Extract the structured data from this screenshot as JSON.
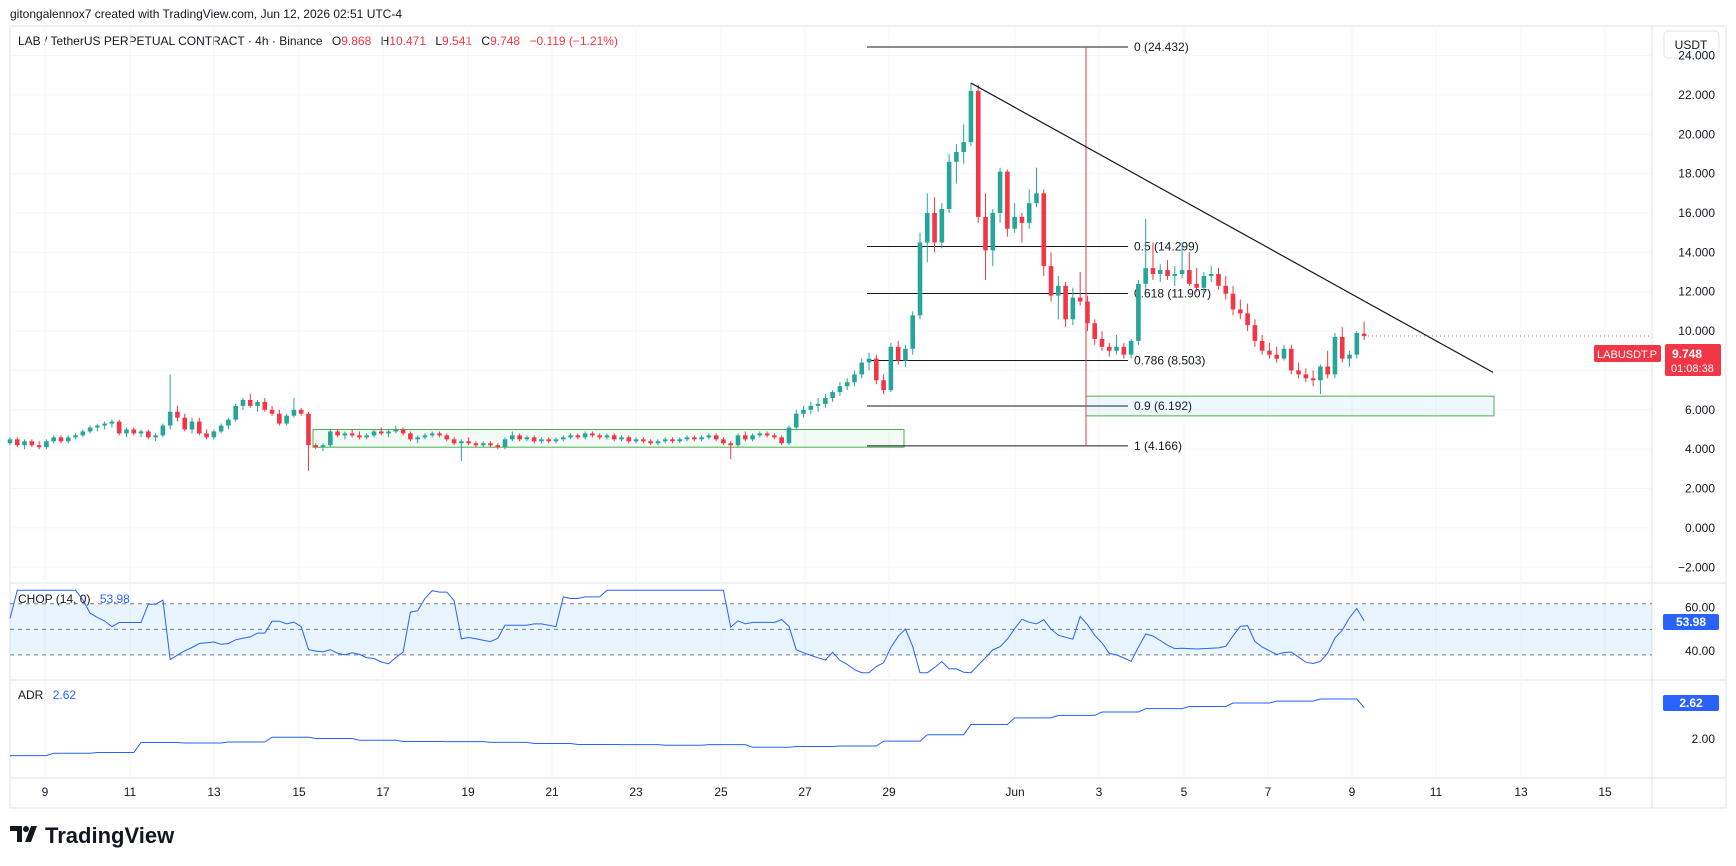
{
  "header": {
    "credit": "gitongalennox7 created with TradingView.com, Jun 12, 2026 02:51 UTC-4"
  },
  "legend": {
    "symbol": "LAB / TetherUS PERPETUAL CONTRACT · 4h · Binance",
    "o_label": "O",
    "o_value": "9.868",
    "h_label": "H",
    "h_value": "10.471",
    "l_label": "L",
    "l_value": "9.541",
    "c_label": "C",
    "c_value": "9.748",
    "change": "−0.119 (−1.21%)"
  },
  "currency_button": "USDT",
  "price_axis": {
    "ticks": [
      "24.000",
      "22.000",
      "20.000",
      "18.000",
      "16.000",
      "14.000",
      "12.000",
      "10.000",
      "8.000",
      "6.000",
      "4.000",
      "2.000",
      "0.000",
      "−2.000"
    ]
  },
  "price_tag": {
    "symbol": "LABUSDT.P",
    "price": "9.748",
    "countdown": "01:08:38"
  },
  "fibonacci": {
    "levels": [
      {
        "label": "0 (24.432)",
        "value": 24.432
      },
      {
        "label": "0.5 (14.299)",
        "value": 14.299
      },
      {
        "label": "0.618 (11.907)",
        "value": 11.907
      },
      {
        "label": "0.786 (8.503)",
        "value": 8.503
      },
      {
        "label": "0.9 (6.192)",
        "value": 6.192
      },
      {
        "label": "1 (4.166)",
        "value": 4.166
      }
    ]
  },
  "chop": {
    "label": "CHOP (14, 0)",
    "value": "53.98",
    "ticks": [
      "60.00",
      "40.00"
    ]
  },
  "adr": {
    "label": "ADR",
    "value": "2.62",
    "ticks": [
      "2.00"
    ]
  },
  "time_axis": {
    "labels": [
      "9",
      "11",
      "13",
      "15",
      "17",
      "19",
      "21",
      "23",
      "25",
      "27",
      "29",
      "Jun",
      "3",
      "5",
      "7",
      "9",
      "11",
      "13",
      "15"
    ]
  },
  "footer": {
    "brand": "TradingView"
  },
  "colors": {
    "up": "#26a69a",
    "down": "#f23645",
    "indicator": "#2962ff",
    "text": "#131722"
  },
  "chart_data": {
    "type": "candlestick",
    "interval": "4h",
    "y_range": [
      -2.8,
      25.5
    ],
    "x_labels": [
      "9",
      "11",
      "13",
      "15",
      "17",
      "19",
      "21",
      "23",
      "25",
      "27",
      "29",
      "Jun",
      "3",
      "5",
      "7",
      "9",
      "11",
      "13",
      "15"
    ],
    "ohlc": [
      [
        4.3,
        4.6,
        4.2,
        4.5
      ],
      [
        4.5,
        4.6,
        4.1,
        4.2
      ],
      [
        4.2,
        4.5,
        4.0,
        4.4
      ],
      [
        4.4,
        4.5,
        4.1,
        4.2
      ],
      [
        4.2,
        4.4,
        4.0,
        4.1
      ],
      [
        4.1,
        4.5,
        4.0,
        4.4
      ],
      [
        4.4,
        4.7,
        4.3,
        4.6
      ],
      [
        4.6,
        4.7,
        4.3,
        4.4
      ],
      [
        4.4,
        4.7,
        4.3,
        4.6
      ],
      [
        4.6,
        4.8,
        4.5,
        4.7
      ],
      [
        4.7,
        5.0,
        4.6,
        4.9
      ],
      [
        4.9,
        5.2,
        4.8,
        5.1
      ],
      [
        5.1,
        5.3,
        4.9,
        5.2
      ],
      [
        5.2,
        5.4,
        5.0,
        5.3
      ],
      [
        5.3,
        5.5,
        5.1,
        5.4
      ],
      [
        5.4,
        5.5,
        4.7,
        4.8
      ],
      [
        4.8,
        5.1,
        4.6,
        5.0
      ],
      [
        5.0,
        5.1,
        4.7,
        4.8
      ],
      [
        4.8,
        5.0,
        4.6,
        4.9
      ],
      [
        4.9,
        5.0,
        4.5,
        4.6
      ],
      [
        4.6,
        4.8,
        4.4,
        4.7
      ],
      [
        4.7,
        5.3,
        4.6,
        5.2
      ],
      [
        5.2,
        7.8,
        5.0,
        5.9
      ],
      [
        5.9,
        6.2,
        5.4,
        5.6
      ],
      [
        5.6,
        5.8,
        4.9,
        5.0
      ],
      [
        5.0,
        5.6,
        4.8,
        5.4
      ],
      [
        5.4,
        5.6,
        4.7,
        4.8
      ],
      [
        4.8,
        5.0,
        4.5,
        4.6
      ],
      [
        4.6,
        5.0,
        4.5,
        4.9
      ],
      [
        4.9,
        5.3,
        4.8,
        5.2
      ],
      [
        5.2,
        5.6,
        5.0,
        5.5
      ],
      [
        5.5,
        6.3,
        5.4,
        6.2
      ],
      [
        6.2,
        6.6,
        6.0,
        6.5
      ],
      [
        6.5,
        6.8,
        6.1,
        6.2
      ],
      [
        6.2,
        6.5,
        5.9,
        6.4
      ],
      [
        6.4,
        6.6,
        5.9,
        6.0
      ],
      [
        6.0,
        6.2,
        5.7,
        5.8
      ],
      [
        5.8,
        6.0,
        5.2,
        5.3
      ],
      [
        5.3,
        5.8,
        5.2,
        5.7
      ],
      [
        5.7,
        6.6,
        5.6,
        6.0
      ],
      [
        6.0,
        6.1,
        5.7,
        5.8
      ],
      [
        5.8,
        5.9,
        2.9,
        4.2
      ],
      [
        4.2,
        4.3,
        4.0,
        4.1
      ],
      [
        4.1,
        4.3,
        3.9,
        4.2
      ],
      [
        4.2,
        5.0,
        4.1,
        4.9
      ],
      [
        4.9,
        5.0,
        4.6,
        4.7
      ],
      [
        4.7,
        4.9,
        4.5,
        4.8
      ],
      [
        4.8,
        5.0,
        4.6,
        4.7
      ],
      [
        4.7,
        4.9,
        4.5,
        4.6
      ],
      [
        4.6,
        4.8,
        4.5,
        4.7
      ],
      [
        4.7,
        5.0,
        4.6,
        4.9
      ],
      [
        4.9,
        5.1,
        4.7,
        4.8
      ],
      [
        4.8,
        5.0,
        4.6,
        4.9
      ],
      [
        4.9,
        5.2,
        4.8,
        5.0
      ],
      [
        5.0,
        5.1,
        4.7,
        4.8
      ],
      [
        4.8,
        4.9,
        4.4,
        4.5
      ],
      [
        4.5,
        4.7,
        4.3,
        4.6
      ],
      [
        4.6,
        4.8,
        4.5,
        4.7
      ],
      [
        4.7,
        4.9,
        4.6,
        4.8
      ],
      [
        4.8,
        4.9,
        4.6,
        4.7
      ],
      [
        4.7,
        4.8,
        4.4,
        4.5
      ],
      [
        4.5,
        4.6,
        4.2,
        4.3
      ],
      [
        4.3,
        4.5,
        3.4,
        4.4
      ],
      [
        4.4,
        4.6,
        4.2,
        4.3
      ],
      [
        4.3,
        4.4,
        4.1,
        4.2
      ],
      [
        4.2,
        4.4,
        4.1,
        4.3
      ],
      [
        4.3,
        4.4,
        4.1,
        4.2
      ],
      [
        4.2,
        4.3,
        4.0,
        4.1
      ],
      [
        4.1,
        4.6,
        4.0,
        4.5
      ],
      [
        4.5,
        4.9,
        4.4,
        4.7
      ],
      [
        4.7,
        4.8,
        4.4,
        4.5
      ],
      [
        4.5,
        4.7,
        4.4,
        4.6
      ],
      [
        4.6,
        4.7,
        4.3,
        4.4
      ],
      [
        4.4,
        4.6,
        4.3,
        4.5
      ],
      [
        4.5,
        4.6,
        4.3,
        4.4
      ],
      [
        4.4,
        4.6,
        4.3,
        4.5
      ],
      [
        4.5,
        4.7,
        4.4,
        4.6
      ],
      [
        4.6,
        4.8,
        4.5,
        4.7
      ],
      [
        4.7,
        4.8,
        4.5,
        4.6
      ],
      [
        4.6,
        4.9,
        4.5,
        4.8
      ],
      [
        4.8,
        4.9,
        4.6,
        4.7
      ],
      [
        4.7,
        4.8,
        4.5,
        4.6
      ],
      [
        4.6,
        4.8,
        4.5,
        4.7
      ],
      [
        4.7,
        4.8,
        4.4,
        4.5
      ],
      [
        4.5,
        4.7,
        4.4,
        4.6
      ],
      [
        4.6,
        4.7,
        4.3,
        4.4
      ],
      [
        4.4,
        4.6,
        4.3,
        4.5
      ],
      [
        4.5,
        4.6,
        4.3,
        4.4
      ],
      [
        4.4,
        4.5,
        4.2,
        4.3
      ],
      [
        4.3,
        4.5,
        4.2,
        4.4
      ],
      [
        4.4,
        4.6,
        4.3,
        4.5
      ],
      [
        4.5,
        4.6,
        4.3,
        4.4
      ],
      [
        4.4,
        4.6,
        4.3,
        4.5
      ],
      [
        4.5,
        4.7,
        4.4,
        4.6
      ],
      [
        4.6,
        4.7,
        4.4,
        4.5
      ],
      [
        4.5,
        4.7,
        4.4,
        4.6
      ],
      [
        4.6,
        4.8,
        4.5,
        4.7
      ],
      [
        4.7,
        4.8,
        4.4,
        4.5
      ],
      [
        4.5,
        4.6,
        4.2,
        4.3
      ],
      [
        4.3,
        4.4,
        3.5,
        4.2
      ],
      [
        4.2,
        4.8,
        4.1,
        4.7
      ],
      [
        4.7,
        4.9,
        4.4,
        4.5
      ],
      [
        4.5,
        4.8,
        4.4,
        4.7
      ],
      [
        4.7,
        4.9,
        4.6,
        4.8
      ],
      [
        4.8,
        4.9,
        4.6,
        4.7
      ],
      [
        4.7,
        4.8,
        4.5,
        4.6
      ],
      [
        4.6,
        4.7,
        4.2,
        4.3
      ],
      [
        4.3,
        5.2,
        4.2,
        5.1
      ],
      [
        5.1,
        6.0,
        5.0,
        5.8
      ],
      [
        5.8,
        6.2,
        5.6,
        6.0
      ],
      [
        6.0,
        6.4,
        5.8,
        6.2
      ],
      [
        6.2,
        6.6,
        5.9,
        6.3
      ],
      [
        6.3,
        6.8,
        6.1,
        6.6
      ],
      [
        6.6,
        7.0,
        6.4,
        6.9
      ],
      [
        6.9,
        7.4,
        6.7,
        7.2
      ],
      [
        7.2,
        7.6,
        7.0,
        7.4
      ],
      [
        7.4,
        8.0,
        7.2,
        7.8
      ],
      [
        7.8,
        8.6,
        7.6,
        8.4
      ],
      [
        8.4,
        8.9,
        8.0,
        8.6
      ],
      [
        8.6,
        8.8,
        7.3,
        7.5
      ],
      [
        7.5,
        7.8,
        6.8,
        7.0
      ],
      [
        7.0,
        9.4,
        6.9,
        9.2
      ],
      [
        9.2,
        9.5,
        8.3,
        8.5
      ],
      [
        8.5,
        9.3,
        8.2,
        9.1
      ],
      [
        9.1,
        11.0,
        8.8,
        10.8
      ],
      [
        10.8,
        15.0,
        10.6,
        14.5
      ],
      [
        14.5,
        17.0,
        13.5,
        16.0
      ],
      [
        16.0,
        16.8,
        14.0,
        14.5
      ],
      [
        14.5,
        16.5,
        14.2,
        16.2
      ],
      [
        16.2,
        19.0,
        16.0,
        18.6
      ],
      [
        18.6,
        19.5,
        17.5,
        19.1
      ],
      [
        19.1,
        20.5,
        18.5,
        19.6
      ],
      [
        19.6,
        22.6,
        19.4,
        22.2
      ],
      [
        22.2,
        22.5,
        15.5,
        15.8
      ],
      [
        15.8,
        17.0,
        12.6,
        14.1
      ],
      [
        14.1,
        16.2,
        13.3,
        16.0
      ],
      [
        16.0,
        18.3,
        15.5,
        18.1
      ],
      [
        18.1,
        18.2,
        14.8,
        15.2
      ],
      [
        15.2,
        16.5,
        15.0,
        15.8
      ],
      [
        15.8,
        16.0,
        14.5,
        15.5
      ],
      [
        15.5,
        17.2,
        15.2,
        16.5
      ],
      [
        16.5,
        18.3,
        16.3,
        17.0
      ],
      [
        17.0,
        17.2,
        12.8,
        13.3
      ],
      [
        13.3,
        14.0,
        11.5,
        11.8
      ],
      [
        11.8,
        12.8,
        10.6,
        12.3
      ],
      [
        12.3,
        12.5,
        10.2,
        10.6
      ],
      [
        10.6,
        12.2,
        10.3,
        11.7
      ],
      [
        11.7,
        13.0,
        11.3,
        11.5
      ],
      [
        11.5,
        11.8,
        10.0,
        10.4
      ],
      [
        10.4,
        10.6,
        9.3,
        9.6
      ],
      [
        9.6,
        10.0,
        9.0,
        9.2
      ],
      [
        9.2,
        9.4,
        8.7,
        9.0
      ],
      [
        9.0,
        9.8,
        8.8,
        9.2
      ],
      [
        9.2,
        9.4,
        8.6,
        8.8
      ],
      [
        8.8,
        9.6,
        8.6,
        9.5
      ],
      [
        9.5,
        12.6,
        9.3,
        12.4
      ],
      [
        12.4,
        15.7,
        12.1,
        13.2
      ],
      [
        13.2,
        14.5,
        12.6,
        12.9
      ],
      [
        12.9,
        13.4,
        12.5,
        13.1
      ],
      [
        13.1,
        13.6,
        12.6,
        12.8
      ],
      [
        12.8,
        13.3,
        12.3,
        12.9
      ],
      [
        12.9,
        14.5,
        12.7,
        13.1
      ],
      [
        13.1,
        14.0,
        12.3,
        12.4
      ],
      [
        12.4,
        13.2,
        12.0,
        12.2
      ],
      [
        12.2,
        13.0,
        11.9,
        12.8
      ],
      [
        12.8,
        13.3,
        12.5,
        12.9
      ],
      [
        12.9,
        13.2,
        12.1,
        12.3
      ],
      [
        12.3,
        12.8,
        11.6,
        11.9
      ],
      [
        11.9,
        12.3,
        10.8,
        11.1
      ],
      [
        11.1,
        11.6,
        10.6,
        10.9
      ],
      [
        10.9,
        11.4,
        10.0,
        10.3
      ],
      [
        10.3,
        10.6,
        9.2,
        9.5
      ],
      [
        9.5,
        9.8,
        8.8,
        9.0
      ],
      [
        9.0,
        9.4,
        8.6,
        8.8
      ],
      [
        8.8,
        9.2,
        8.4,
        8.6
      ],
      [
        8.6,
        9.3,
        8.5,
        9.1
      ],
      [
        9.1,
        9.3,
        7.8,
        8.0
      ],
      [
        8.0,
        8.4,
        7.6,
        7.8
      ],
      [
        7.8,
        8.1,
        7.4,
        7.6
      ],
      [
        7.6,
        8.0,
        7.2,
        7.5
      ],
      [
        7.5,
        8.3,
        6.8,
        8.2
      ],
      [
        8.2,
        9.0,
        7.6,
        7.8
      ],
      [
        7.8,
        9.9,
        7.6,
        9.7
      ],
      [
        9.7,
        10.2,
        8.4,
        8.6
      ],
      [
        8.6,
        9.0,
        8.2,
        8.8
      ],
      [
        8.8,
        10.0,
        8.6,
        9.9
      ],
      [
        9.868,
        10.471,
        9.541,
        9.748
      ]
    ],
    "series": [
      {
        "name": "CHOP (14, 0)",
        "last": 53.98,
        "range": [
          28,
          70
        ]
      },
      {
        "name": "ADR",
        "last": 2.62,
        "range": [
          1.3,
          3.1
        ]
      }
    ]
  }
}
